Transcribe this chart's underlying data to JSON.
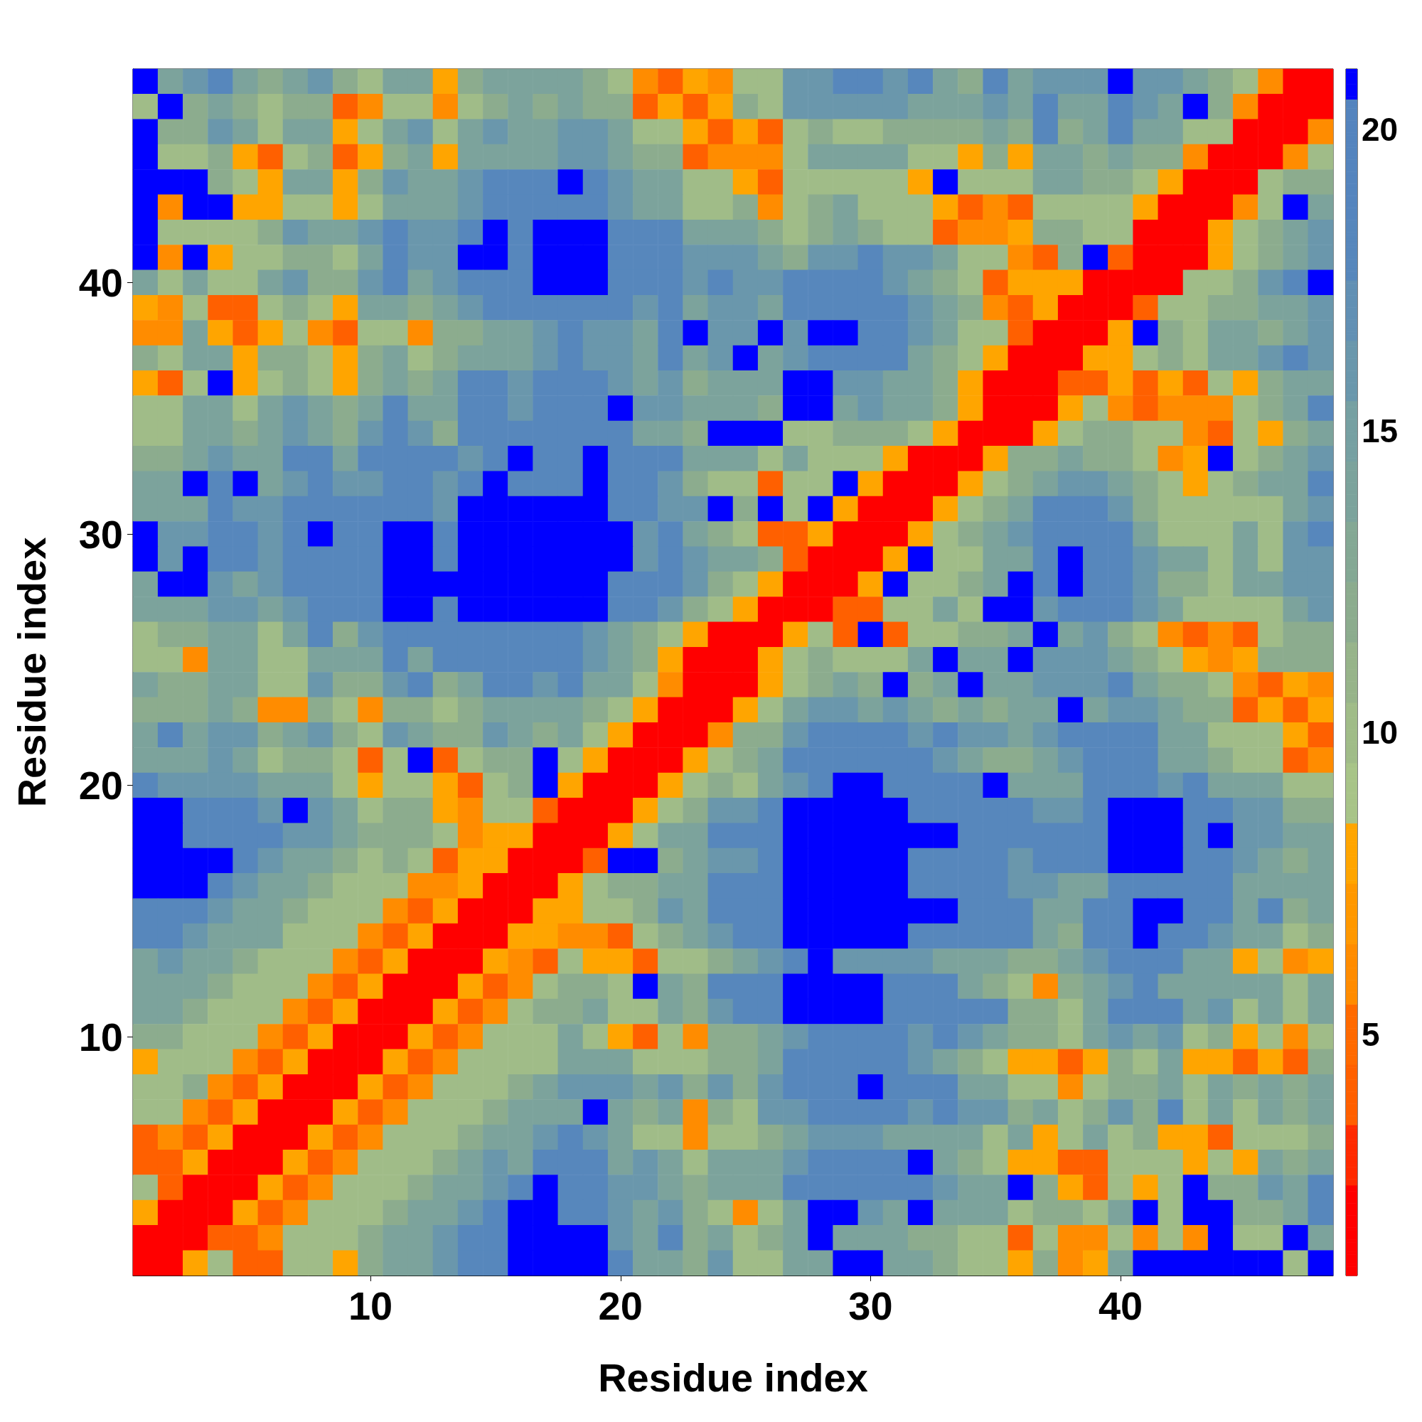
{
  "chart_data": {
    "type": "heatmap",
    "xlabel": "Residue index",
    "ylabel": "Residue index",
    "categories": [
      null,
      null,
      null,
      null,
      null,
      null,
      null,
      null,
      null,
      "10",
      null,
      null,
      null,
      null,
      null,
      null,
      null,
      null,
      null,
      "20",
      null,
      null,
      null,
      null,
      null,
      null,
      null,
      null,
      null,
      "30",
      null,
      null,
      null,
      null,
      null,
      null,
      null,
      null,
      null,
      "40",
      null,
      null,
      null,
      null,
      null,
      null,
      null,
      null
    ],
    "y_categories": [
      null,
      null,
      null,
      null,
      null,
      null,
      null,
      null,
      "40",
      null,
      null,
      null,
      null,
      null,
      null,
      null,
      null,
      null,
      "30",
      null,
      null,
      null,
      null,
      null,
      null,
      null,
      null,
      null,
      "20",
      null,
      null,
      null,
      null,
      null,
      null,
      null,
      null,
      null,
      "10",
      null,
      null,
      null,
      null,
      null,
      null,
      null,
      null,
      null
    ],
    "clim": [
      1,
      21
    ],
    "cticks": [
      5,
      10,
      15,
      20
    ],
    "cells": [
      [
        21,
        14,
        16,
        18,
        14,
        12,
        14,
        16,
        12,
        10,
        14,
        14,
        8,
        12,
        14,
        14,
        14,
        14,
        12,
        10,
        6,
        4,
        8,
        6,
        10,
        10,
        16,
        16,
        18,
        18,
        16,
        18,
        14,
        12,
        18,
        14,
        16,
        16,
        16,
        21,
        16,
        16,
        14,
        12,
        10,
        6,
        2,
        2
      ],
      [
        10,
        21,
        12,
        14,
        12,
        10,
        12,
        12,
        4,
        6,
        10,
        10,
        6,
        10,
        12,
        14,
        12,
        14,
        12,
        12,
        4,
        8,
        4,
        8,
        12,
        10,
        16,
        16,
        16,
        16,
        16,
        14,
        14,
        14,
        16,
        14,
        18,
        14,
        14,
        18,
        16,
        14,
        21,
        12,
        6,
        2,
        2,
        2
      ],
      [
        21,
        12,
        12,
        16,
        14,
        10,
        14,
        14,
        8,
        10,
        14,
        16,
        10,
        14,
        16,
        14,
        14,
        16,
        16,
        14,
        10,
        10,
        8,
        4,
        8,
        4,
        10,
        12,
        10,
        10,
        12,
        12,
        12,
        12,
        14,
        12,
        18,
        12,
        14,
        18,
        14,
        14,
        10,
        10,
        2,
        2,
        2,
        6
      ],
      [
        21,
        10,
        10,
        12,
        8,
        4,
        10,
        12,
        4,
        8,
        12,
        14,
        8,
        14,
        14,
        14,
        14,
        16,
        16,
        14,
        12,
        12,
        4,
        6,
        6,
        6,
        10,
        14,
        14,
        14,
        14,
        10,
        10,
        8,
        12,
        8,
        14,
        14,
        12,
        14,
        12,
        12,
        6,
        2,
        2,
        2,
        6,
        10
      ],
      [
        21,
        21,
        21,
        12,
        10,
        8,
        14,
        14,
        8,
        12,
        16,
        14,
        14,
        16,
        18,
        18,
        18,
        21,
        18,
        16,
        14,
        14,
        10,
        10,
        8,
        4,
        10,
        10,
        10,
        10,
        10,
        8,
        21,
        10,
        10,
        10,
        14,
        14,
        12,
        12,
        10,
        8,
        2,
        2,
        2,
        10,
        12,
        12
      ],
      [
        21,
        6,
        21,
        21,
        8,
        8,
        10,
        10,
        8,
        10,
        14,
        14,
        14,
        16,
        18,
        18,
        18,
        18,
        18,
        16,
        14,
        14,
        10,
        10,
        12,
        6,
        10,
        12,
        14,
        10,
        10,
        10,
        8,
        4,
        6,
        4,
        10,
        10,
        10,
        10,
        8,
        2,
        2,
        2,
        6,
        10,
        21,
        14
      ],
      [
        21,
        10,
        10,
        10,
        10,
        12,
        16,
        14,
        14,
        16,
        18,
        16,
        16,
        18,
        21,
        18,
        21,
        21,
        21,
        18,
        18,
        18,
        14,
        14,
        14,
        12,
        10,
        12,
        14,
        12,
        10,
        10,
        4,
        6,
        6,
        8,
        12,
        12,
        10,
        10,
        2,
        2,
        2,
        8,
        10,
        12,
        14,
        16
      ],
      [
        21,
        6,
        21,
        8,
        10,
        10,
        12,
        12,
        10,
        14,
        18,
        16,
        16,
        21,
        21,
        18,
        21,
        21,
        21,
        18,
        18,
        18,
        16,
        16,
        16,
        14,
        12,
        16,
        16,
        18,
        16,
        16,
        14,
        10,
        10,
        6,
        4,
        12,
        21,
        4,
        2,
        2,
        2,
        8,
        10,
        12,
        14,
        16
      ],
      [
        14,
        10,
        14,
        10,
        10,
        14,
        16,
        12,
        12,
        16,
        18,
        14,
        16,
        18,
        18,
        18,
        21,
        21,
        21,
        18,
        18,
        18,
        16,
        18,
        16,
        16,
        18,
        18,
        18,
        18,
        16,
        14,
        12,
        10,
        4,
        8,
        8,
        8,
        2,
        2,
        2,
        2,
        10,
        10,
        12,
        16,
        18,
        21
      ],
      [
        8,
        6,
        10,
        4,
        4,
        10,
        12,
        10,
        8,
        14,
        14,
        12,
        14,
        16,
        18,
        18,
        18,
        18,
        18,
        18,
        16,
        18,
        14,
        16,
        16,
        14,
        18,
        18,
        18,
        18,
        18,
        16,
        14,
        12,
        6,
        4,
        8,
        2,
        2,
        2,
        4,
        10,
        10,
        12,
        12,
        14,
        14,
        16
      ],
      [
        6,
        6,
        14,
        8,
        4,
        8,
        10,
        6,
        4,
        10,
        10,
        6,
        12,
        12,
        14,
        14,
        16,
        18,
        16,
        16,
        14,
        18,
        21,
        16,
        16,
        21,
        16,
        21,
        21,
        18,
        18,
        16,
        14,
        10,
        10,
        4,
        2,
        2,
        2,
        8,
        21,
        12,
        10,
        14,
        14,
        12,
        14,
        16
      ],
      [
        12,
        10,
        14,
        14,
        8,
        12,
        12,
        10,
        8,
        12,
        14,
        10,
        12,
        14,
        14,
        14,
        16,
        18,
        16,
        16,
        14,
        18,
        14,
        16,
        21,
        14,
        16,
        18,
        18,
        18,
        18,
        14,
        12,
        10,
        8,
        2,
        2,
        2,
        8,
        8,
        10,
        12,
        10,
        14,
        14,
        16,
        18,
        16
      ],
      [
        8,
        4,
        10,
        21,
        8,
        10,
        12,
        10,
        8,
        12,
        14,
        12,
        14,
        18,
        18,
        16,
        18,
        18,
        18,
        16,
        14,
        16,
        12,
        14,
        14,
        14,
        21,
        21,
        16,
        16,
        14,
        14,
        12,
        8,
        2,
        2,
        2,
        4,
        4,
        8,
        4,
        8,
        4,
        10,
        8,
        12,
        14,
        14
      ],
      [
        10,
        10,
        14,
        14,
        10,
        14,
        16,
        14,
        12,
        14,
        18,
        14,
        14,
        18,
        18,
        16,
        18,
        18,
        18,
        21,
        16,
        16,
        14,
        14,
        14,
        12,
        21,
        21,
        14,
        16,
        14,
        14,
        12,
        8,
        2,
        2,
        2,
        8,
        10,
        6,
        4,
        6,
        6,
        6,
        10,
        12,
        14,
        18
      ],
      [
        10,
        10,
        14,
        14,
        12,
        14,
        16,
        14,
        12,
        16,
        18,
        16,
        12,
        18,
        18,
        18,
        18,
        18,
        18,
        18,
        14,
        14,
        12,
        21,
        21,
        21,
        10,
        10,
        12,
        12,
        12,
        10,
        8,
        2,
        2,
        2,
        8,
        10,
        12,
        12,
        10,
        10,
        6,
        4,
        10,
        8,
        12,
        14
      ],
      [
        12,
        12,
        14,
        16,
        14,
        14,
        18,
        18,
        14,
        18,
        18,
        18,
        18,
        16,
        18,
        21,
        18,
        18,
        21,
        18,
        18,
        18,
        14,
        14,
        14,
        10,
        14,
        10,
        10,
        10,
        8,
        2,
        2,
        2,
        8,
        12,
        12,
        14,
        12,
        12,
        10,
        6,
        8,
        21,
        10,
        12,
        14,
        16
      ],
      [
        14,
        14,
        21,
        18,
        21,
        14,
        16,
        18,
        16,
        16,
        18,
        18,
        16,
        18,
        21,
        18,
        18,
        18,
        21,
        18,
        18,
        16,
        12,
        10,
        10,
        4,
        10,
        10,
        21,
        8,
        2,
        2,
        2,
        8,
        10,
        12,
        14,
        16,
        16,
        14,
        12,
        10,
        8,
        10,
        12,
        14,
        14,
        18
      ],
      [
        14,
        14,
        14,
        18,
        16,
        16,
        18,
        18,
        18,
        18,
        18,
        18,
        16,
        21,
        21,
        21,
        21,
        21,
        21,
        18,
        18,
        16,
        16,
        21,
        12,
        21,
        10,
        21,
        8,
        2,
        2,
        2,
        8,
        10,
        12,
        14,
        18,
        18,
        18,
        16,
        12,
        10,
        10,
        10,
        10,
        10,
        14,
        16
      ],
      [
        21,
        16,
        16,
        18,
        18,
        16,
        18,
        21,
        18,
        18,
        21,
        21,
        18,
        21,
        21,
        21,
        21,
        21,
        21,
        21,
        16,
        18,
        14,
        12,
        10,
        4,
        4,
        8,
        2,
        2,
        2,
        8,
        10,
        12,
        14,
        16,
        18,
        18,
        18,
        18,
        14,
        10,
        10,
        10,
        14,
        10,
        16,
        18
      ],
      [
        21,
        16,
        21,
        18,
        18,
        16,
        18,
        18,
        18,
        18,
        21,
        21,
        18,
        21,
        21,
        21,
        21,
        21,
        21,
        21,
        16,
        18,
        16,
        14,
        14,
        12,
        4,
        2,
        2,
        2,
        8,
        21,
        10,
        10,
        14,
        14,
        18,
        21,
        18,
        18,
        16,
        14,
        14,
        10,
        14,
        10,
        16,
        16
      ],
      [
        14,
        21,
        21,
        16,
        14,
        16,
        18,
        18,
        18,
        18,
        21,
        21,
        21,
        21,
        21,
        21,
        21,
        21,
        21,
        18,
        18,
        18,
        16,
        12,
        10,
        8,
        2,
        2,
        2,
        8,
        21,
        10,
        10,
        12,
        14,
        21,
        18,
        21,
        18,
        18,
        16,
        12,
        12,
        10,
        14,
        14,
        16,
        16
      ],
      [
        14,
        14,
        14,
        16,
        16,
        14,
        16,
        18,
        18,
        18,
        21,
        21,
        18,
        21,
        21,
        21,
        21,
        21,
        21,
        18,
        18,
        16,
        12,
        10,
        8,
        2,
        2,
        2,
        4,
        4,
        10,
        10,
        14,
        10,
        21,
        21,
        16,
        18,
        18,
        18,
        16,
        14,
        10,
        10,
        10,
        10,
        14,
        16
      ],
      [
        10,
        12,
        12,
        14,
        14,
        10,
        14,
        18,
        12,
        16,
        18,
        18,
        18,
        18,
        18,
        18,
        18,
        18,
        16,
        14,
        12,
        10,
        8,
        2,
        2,
        2,
        8,
        10,
        4,
        21,
        4,
        10,
        10,
        12,
        12,
        14,
        21,
        14,
        16,
        12,
        10,
        6,
        4,
        6,
        4,
        10,
        12,
        12
      ],
      [
        10,
        10,
        6,
        14,
        14,
        10,
        10,
        14,
        14,
        14,
        18,
        14,
        18,
        18,
        18,
        18,
        18,
        18,
        16,
        14,
        12,
        8,
        2,
        2,
        2,
        8,
        10,
        12,
        10,
        10,
        10,
        14,
        21,
        14,
        14,
        21,
        16,
        16,
        16,
        14,
        12,
        10,
        8,
        6,
        8,
        12,
        12,
        12
      ],
      [
        14,
        12,
        12,
        14,
        14,
        10,
        10,
        16,
        12,
        12,
        16,
        18,
        12,
        14,
        18,
        18,
        16,
        18,
        14,
        14,
        10,
        6,
        2,
        2,
        2,
        8,
        10,
        12,
        14,
        12,
        21,
        12,
        14,
        21,
        14,
        14,
        16,
        16,
        16,
        18,
        14,
        12,
        12,
        10,
        6,
        4,
        8,
        6
      ],
      [
        12,
        12,
        12,
        14,
        12,
        6,
        6,
        12,
        10,
        6,
        12,
        12,
        10,
        12,
        14,
        14,
        14,
        14,
        12,
        10,
        8,
        2,
        2,
        2,
        8,
        10,
        14,
        16,
        16,
        14,
        16,
        14,
        12,
        14,
        12,
        14,
        14,
        21,
        14,
        16,
        16,
        14,
        12,
        12,
        4,
        8,
        4,
        8
      ],
      [
        14,
        18,
        14,
        16,
        16,
        12,
        14,
        16,
        12,
        10,
        16,
        14,
        12,
        12,
        16,
        14,
        12,
        14,
        10,
        8,
        2,
        2,
        2,
        6,
        12,
        12,
        16,
        18,
        18,
        18,
        18,
        16,
        18,
        16,
        16,
        14,
        16,
        18,
        18,
        18,
        18,
        14,
        14,
        10,
        10,
        10,
        8,
        4
      ],
      [
        14,
        14,
        14,
        16,
        14,
        10,
        12,
        12,
        10,
        4,
        10,
        21,
        4,
        10,
        12,
        12,
        21,
        10,
        8,
        2,
        2,
        2,
        8,
        10,
        12,
        14,
        18,
        18,
        18,
        18,
        18,
        18,
        16,
        14,
        12,
        12,
        14,
        16,
        18,
        18,
        18,
        14,
        14,
        12,
        10,
        10,
        4,
        6
      ],
      [
        18,
        16,
        16,
        16,
        16,
        14,
        14,
        14,
        10,
        8,
        10,
        10,
        8,
        4,
        10,
        12,
        21,
        8,
        2,
        2,
        2,
        8,
        10,
        12,
        10,
        14,
        16,
        18,
        21,
        21,
        18,
        18,
        18,
        18,
        21,
        14,
        14,
        14,
        18,
        18,
        18,
        16,
        18,
        14,
        14,
        14,
        10,
        10
      ],
      [
        21,
        21,
        18,
        18,
        18,
        16,
        21,
        16,
        14,
        10,
        12,
        12,
        8,
        6,
        10,
        10,
        4,
        2,
        2,
        2,
        8,
        10,
        12,
        16,
        16,
        18,
        21,
        21,
        21,
        21,
        21,
        18,
        18,
        18,
        18,
        18,
        16,
        16,
        18,
        21,
        21,
        21,
        18,
        18,
        16,
        16,
        12,
        12
      ],
      [
        21,
        21,
        18,
        18,
        18,
        18,
        16,
        16,
        14,
        12,
        12,
        12,
        10,
        6,
        8,
        8,
        2,
        2,
        2,
        8,
        10,
        14,
        14,
        18,
        18,
        18,
        21,
        21,
        21,
        21,
        21,
        21,
        21,
        18,
        18,
        18,
        18,
        18,
        18,
        21,
        21,
        21,
        18,
        21,
        16,
        16,
        14,
        14
      ],
      [
        21,
        21,
        21,
        21,
        18,
        16,
        14,
        14,
        12,
        10,
        12,
        10,
        4,
        8,
        8,
        2,
        2,
        2,
        4,
        21,
        21,
        12,
        14,
        16,
        16,
        18,
        21,
        21,
        21,
        21,
        21,
        18,
        18,
        18,
        18,
        16,
        18,
        18,
        18,
        21,
        21,
        21,
        18,
        18,
        16,
        14,
        12,
        14
      ],
      [
        21,
        21,
        21,
        18,
        16,
        14,
        14,
        12,
        10,
        10,
        10,
        6,
        6,
        8,
        2,
        2,
        2,
        8,
        10,
        12,
        12,
        14,
        14,
        18,
        18,
        18,
        21,
        21,
        21,
        21,
        21,
        18,
        18,
        18,
        18,
        16,
        16,
        14,
        14,
        18,
        18,
        18,
        18,
        18,
        14,
        14,
        14,
        14
      ],
      [
        18,
        18,
        18,
        16,
        14,
        14,
        12,
        10,
        10,
        10,
        6,
        4,
        8,
        2,
        2,
        2,
        8,
        8,
        10,
        10,
        12,
        16,
        14,
        18,
        18,
        18,
        21,
        21,
        21,
        21,
        21,
        21,
        21,
        18,
        18,
        18,
        14,
        14,
        18,
        18,
        21,
        21,
        18,
        18,
        14,
        18,
        12,
        14
      ],
      [
        18,
        18,
        16,
        14,
        14,
        14,
        10,
        10,
        10,
        6,
        4,
        8,
        2,
        2,
        2,
        8,
        8,
        6,
        6,
        4,
        10,
        12,
        14,
        16,
        18,
        18,
        21,
        21,
        21,
        21,
        21,
        18,
        18,
        18,
        18,
        18,
        14,
        12,
        18,
        18,
        21,
        18,
        18,
        16,
        14,
        14,
        10,
        12
      ],
      [
        14,
        16,
        14,
        14,
        12,
        10,
        10,
        10,
        6,
        4,
        8,
        2,
        2,
        2,
        8,
        6,
        4,
        10,
        8,
        8,
        4,
        10,
        10,
        12,
        14,
        16,
        18,
        21,
        16,
        16,
        16,
        16,
        14,
        14,
        14,
        12,
        12,
        14,
        16,
        18,
        18,
        18,
        14,
        14,
        8,
        10,
        6,
        8
      ],
      [
        14,
        14,
        14,
        12,
        10,
        10,
        10,
        6,
        4,
        8,
        2,
        2,
        2,
        8,
        4,
        6,
        10,
        12,
        12,
        10,
        21,
        14,
        12,
        18,
        18,
        18,
        21,
        21,
        21,
        21,
        18,
        18,
        18,
        14,
        12,
        10,
        6,
        12,
        14,
        16,
        18,
        14,
        14,
        14,
        14,
        14,
        10,
        14
      ],
      [
        14,
        14,
        12,
        10,
        10,
        10,
        6,
        4,
        8,
        2,
        2,
        2,
        8,
        4,
        6,
        10,
        12,
        12,
        14,
        10,
        10,
        14,
        12,
        16,
        18,
        18,
        21,
        21,
        21,
        21,
        18,
        18,
        18,
        18,
        18,
        12,
        12,
        10,
        14,
        18,
        18,
        18,
        14,
        16,
        10,
        14,
        10,
        14
      ],
      [
        12,
        12,
        10,
        10,
        10,
        6,
        4,
        8,
        2,
        2,
        2,
        8,
        4,
        6,
        10,
        10,
        10,
        14,
        10,
        8,
        4,
        10,
        6,
        12,
        12,
        14,
        16,
        18,
        18,
        18,
        18,
        16,
        18,
        16,
        14,
        12,
        12,
        10,
        14,
        16,
        14,
        16,
        10,
        12,
        8,
        10,
        6,
        10
      ],
      [
        8,
        10,
        10,
        10,
        6,
        4,
        8,
        2,
        2,
        2,
        8,
        4,
        6,
        10,
        10,
        10,
        10,
        14,
        14,
        14,
        10,
        10,
        10,
        12,
        12,
        14,
        18,
        18,
        18,
        18,
        18,
        16,
        14,
        12,
        10,
        8,
        8,
        4,
        8,
        12,
        10,
        14,
        8,
        8,
        4,
        8,
        4,
        12
      ],
      [
        10,
        10,
        12,
        6,
        4,
        8,
        2,
        2,
        2,
        8,
        4,
        6,
        10,
        10,
        10,
        12,
        14,
        16,
        16,
        16,
        14,
        16,
        12,
        16,
        12,
        16,
        18,
        18,
        18,
        21,
        18,
        18,
        18,
        14,
        14,
        10,
        10,
        6,
        10,
        12,
        12,
        14,
        10,
        14,
        12,
        14,
        12,
        14
      ],
      [
        10,
        10,
        6,
        4,
        8,
        2,
        2,
        2,
        8,
        4,
        6,
        10,
        10,
        10,
        12,
        14,
        14,
        14,
        21,
        14,
        12,
        14,
        6,
        12,
        10,
        16,
        16,
        18,
        18,
        18,
        18,
        16,
        18,
        16,
        16,
        12,
        14,
        10,
        12,
        16,
        12,
        18,
        10,
        14,
        10,
        14,
        12,
        14
      ],
      [
        4,
        6,
        4,
        8,
        2,
        2,
        2,
        8,
        4,
        6,
        10,
        10,
        10,
        12,
        14,
        14,
        16,
        18,
        16,
        14,
        10,
        10,
        6,
        10,
        10,
        12,
        14,
        16,
        16,
        16,
        14,
        14,
        14,
        14,
        10,
        14,
        8,
        10,
        14,
        10,
        12,
        8,
        8,
        4,
        10,
        10,
        10,
        12
      ],
      [
        4,
        4,
        8,
        2,
        2,
        2,
        8,
        4,
        6,
        10,
        10,
        10,
        12,
        14,
        16,
        14,
        18,
        18,
        18,
        14,
        16,
        14,
        10,
        14,
        14,
        14,
        16,
        18,
        18,
        18,
        18,
        21,
        14,
        12,
        10,
        8,
        8,
        4,
        4,
        10,
        10,
        10,
        8,
        10,
        8,
        14,
        12,
        14
      ],
      [
        10,
        4,
        2,
        2,
        2,
        8,
        4,
        6,
        10,
        10,
        10,
        12,
        14,
        14,
        16,
        18,
        21,
        18,
        18,
        16,
        16,
        14,
        12,
        14,
        14,
        14,
        18,
        18,
        18,
        18,
        18,
        18,
        16,
        14,
        14,
        21,
        12,
        8,
        4,
        10,
        8,
        10,
        21,
        12,
        12,
        16,
        14,
        18
      ],
      [
        8,
        2,
        2,
        2,
        8,
        4,
        6,
        10,
        10,
        10,
        12,
        14,
        14,
        16,
        18,
        21,
        21,
        18,
        18,
        16,
        14,
        16,
        12,
        10,
        6,
        10,
        14,
        21,
        21,
        16,
        14,
        21,
        14,
        14,
        14,
        10,
        12,
        12,
        10,
        14,
        21,
        10,
        21,
        21,
        12,
        12,
        14,
        18
      ],
      [
        2,
        2,
        2,
        4,
        4,
        6,
        10,
        10,
        10,
        12,
        14,
        14,
        16,
        18,
        18,
        21,
        21,
        21,
        21,
        16,
        14,
        18,
        12,
        14,
        10,
        12,
        14,
        21,
        14,
        14,
        14,
        12,
        12,
        10,
        10,
        4,
        10,
        6,
        6,
        10,
        6,
        10,
        6,
        21,
        10,
        10,
        21,
        14
      ],
      [
        2,
        2,
        8,
        10,
        4,
        4,
        10,
        10,
        8,
        12,
        14,
        14,
        16,
        18,
        18,
        21,
        21,
        21,
        21,
        18,
        14,
        14,
        12,
        16,
        10,
        10,
        14,
        14,
        21,
        21,
        14,
        14,
        12,
        10,
        10,
        8,
        12,
        6,
        8,
        14,
        21,
        21,
        21,
        21,
        21,
        21,
        10,
        21
      ]
    ]
  }
}
